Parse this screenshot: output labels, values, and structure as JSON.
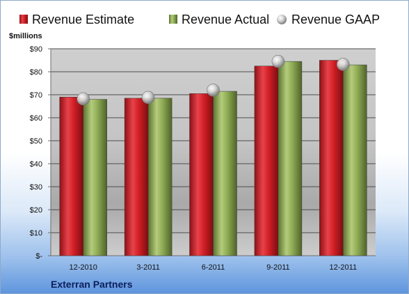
{
  "chart_data": {
    "type": "bar",
    "company": "Exterran Partners",
    "ylabel": "$millions",
    "categories": [
      "12-2010",
      "3-2011",
      "6-2011",
      "9-2011",
      "12-2011"
    ],
    "yticks": [
      "$-",
      "$10",
      "$20",
      "$30",
      "$40",
      "$50",
      "$60",
      "$70",
      "$80",
      "$90"
    ],
    "ylim": [
      0,
      90
    ],
    "grid": true,
    "legend_position": "top",
    "series": [
      {
        "name": "Revenue Estimate",
        "kind": "bar",
        "color": "#d21f26",
        "values": [
          69,
          68.5,
          70.5,
          82.5,
          85
        ]
      },
      {
        "name": "Revenue Actual",
        "kind": "bar",
        "color": "#8fac55",
        "values": [
          68,
          68.5,
          71.5,
          84.5,
          83
        ]
      },
      {
        "name": "Revenue GAAP",
        "kind": "marker",
        "color": "#c8c8c8",
        "values": [
          68.2,
          68.8,
          72,
          84.5,
          83.2
        ]
      }
    ]
  }
}
